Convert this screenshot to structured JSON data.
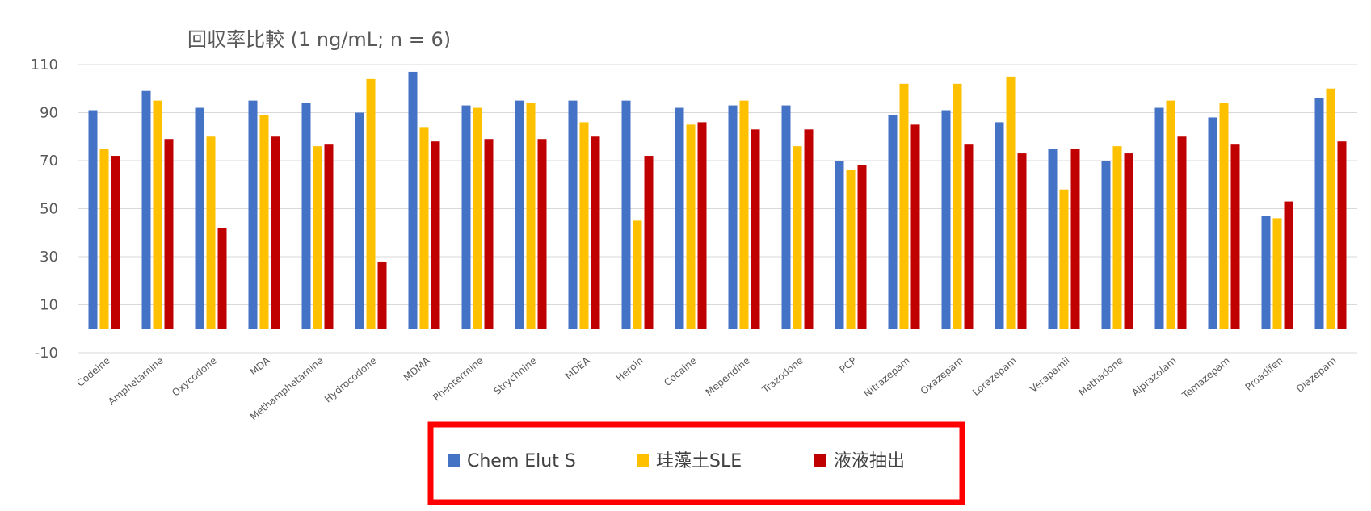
{
  "chart_data": {
    "type": "bar",
    "title": "回収率比較 (1 ng/mL; n = 6)",
    "xlabel": "",
    "ylabel": "",
    "ylim": [
      -10,
      110
    ],
    "yticks": [
      "110",
      "90",
      "70",
      "50",
      "30",
      "10",
      "-10"
    ],
    "grid": true,
    "legend_position": "bottom",
    "categories": [
      "Codeine",
      "Amphetamine",
      "Oxycodone",
      "MDA",
      "Methamphetamine",
      "Hydrocodone",
      "MDMA",
      "Phentermine",
      "Strychnine",
      "MDEA",
      "Heroin",
      "Cocaine",
      "Meperidine",
      "Trazodone",
      "PCP",
      "Nitrazepam",
      "Oxazepam",
      "Lorazepam",
      "Verapamil",
      "Methadone",
      "Alprazolam",
      "Temazepam",
      "Proadifen",
      "Diazepam"
    ],
    "series": [
      {
        "name": "Chem Elut S",
        "color": "#4472C4",
        "values": [
          91,
          99,
          92,
          95,
          94,
          90,
          107,
          93,
          95,
          95,
          95,
          92,
          93,
          93,
          70,
          89,
          91,
          86,
          75,
          70,
          92,
          88,
          47,
          96
        ]
      },
      {
        "name": "珪藻土SLE",
        "color": "#FFC000",
        "values": [
          75,
          95,
          80,
          89,
          76,
          104,
          84,
          92,
          94,
          86,
          45,
          85,
          95,
          76,
          66,
          102,
          102,
          105,
          58,
          76,
          95,
          94,
          46,
          100
        ]
      },
      {
        "name": "液液抽出",
        "color": "#C00000",
        "values": [
          72,
          79,
          42,
          80,
          77,
          28,
          78,
          79,
          79,
          80,
          72,
          86,
          83,
          83,
          68,
          85,
          77,
          73,
          75,
          73,
          80,
          77,
          53,
          78
        ]
      }
    ]
  },
  "legend_border_color": "#FF0000"
}
